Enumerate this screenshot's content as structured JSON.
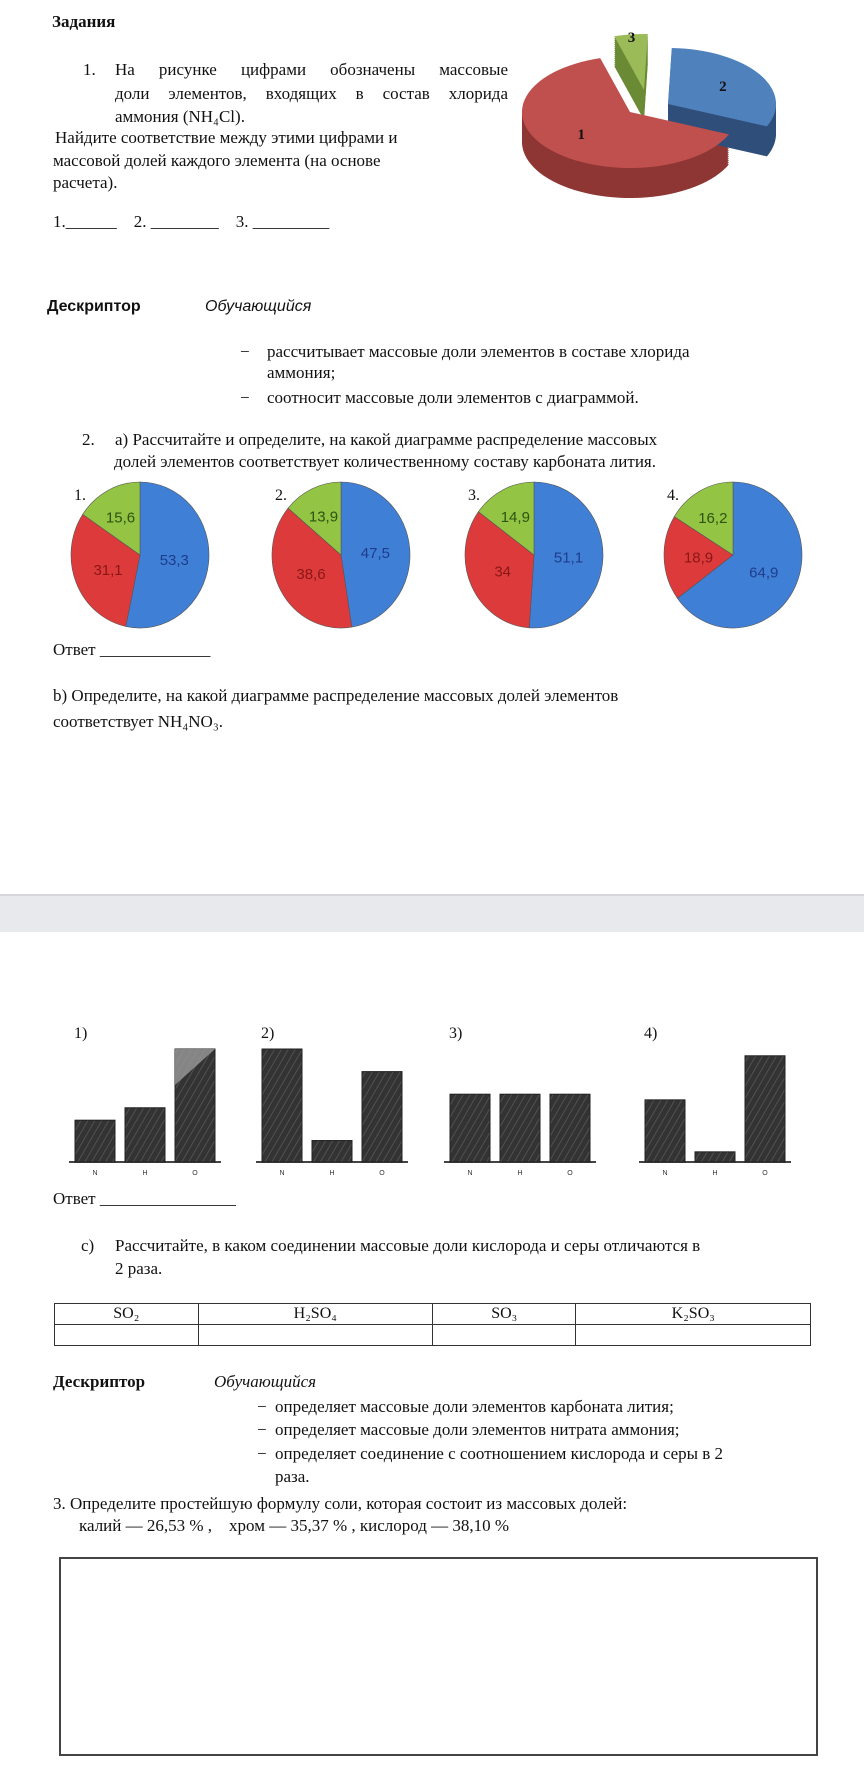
{
  "heading": "Задания",
  "task1": {
    "number": "1.",
    "lines": [
      "На рисунке цифрами обозначены массовые",
      "доли элементов, входящих в состав хлорида",
      "аммония (NH₄Cl)."
    ],
    "find_lines": [
      "Найдите соответствие между этими цифрами и",
      "массовой долей каждого элемента (на основе",
      "расчета)."
    ],
    "blanks": "1.______    2. ________    3. _________"
  },
  "descriptor1": {
    "label": "Дескриптор",
    "learner": "Обучающийся",
    "items": [
      "рассчитывает массовые доли элементов в составе хлорида",
      "аммония;",
      "соотносит массовые доли элементов с диаграммой."
    ],
    "dash": "−"
  },
  "task2": {
    "number": "2.",
    "a_lines": [
      "а) Рассчитайте и определите, на какой диаграмме распределение массовых",
      "долей элементов соответствует количественному составу карбоната лития."
    ],
    "answer_a": "Ответ _____________",
    "b_lines": [
      "b) Определите, на какой диаграмме распределение массовых долей элементов",
      "соответствует NH₄NO₃."
    ],
    "answer_b": "Ответ ________________",
    "c_label": "c)",
    "c_lines": [
      "Рассчитайте, в каком соединении массовые доли кислорода и серы отличаются в",
      "2 раза."
    ],
    "table_headers": [
      "SO₂",
      "H₂SO₄",
      "SO₃",
      "K₂SO₃"
    ],
    "table_row": [
      "",
      "",
      "",
      ""
    ]
  },
  "descriptor2": {
    "label": "Дескриптор",
    "learner": "Обучающийся",
    "items": [
      "определяет массовые доли элементов карбоната лития;",
      "определяет массовые доли элементов нитрата аммония;",
      "определяет соединение с соотношением кислорода и серы в 2",
      "раза."
    ],
    "dash": "−"
  },
  "task3": {
    "line1": "3. Определите простейшую формулу соли, которая состоит из массовых долей:",
    "line2": "калий — 26,53 % ,    хром — 35,37 % , кислород — 38,10 %"
  },
  "colors": {
    "blue": "#3f7fd6",
    "red": "#dd3b3b",
    "green": "#93c444",
    "pie3d_red": "#c0504d",
    "pie3d_blue": "#4f81bd",
    "pie3d_green": "#9bbb59",
    "bar": "#3a3a3a",
    "band": "#e8e9ed"
  },
  "chart_data": [
    {
      "type": "pie",
      "labels": [
        "1",
        "2",
        "3"
      ],
      "values": [
        64,
        31,
        5
      ],
      "style": "3d-exploded"
    },
    {
      "type": "pie",
      "title": "1.",
      "labels": [
        "53,3",
        "31,1",
        "15,6"
      ],
      "values": [
        53.3,
        31.1,
        15.6
      ]
    },
    {
      "type": "pie",
      "title": "2.",
      "labels": [
        "47,5",
        "38,6",
        "13,9"
      ],
      "values": [
        47.5,
        38.6,
        13.9
      ]
    },
    {
      "type": "pie",
      "title": "3.",
      "labels": [
        "51,1",
        "34",
        "14,9"
      ],
      "values": [
        51.1,
        34,
        14.9
      ]
    },
    {
      "type": "pie",
      "title": "4.",
      "labels": [
        "64,9",
        "18,9",
        "16,2"
      ],
      "values": [
        64.9,
        18.9,
        16.2
      ]
    },
    {
      "type": "bar",
      "title": "1)",
      "categories": [
        "N",
        "H",
        "O"
      ],
      "values": [
        37,
        48,
        100
      ]
    },
    {
      "type": "bar",
      "title": "2)",
      "categories": [
        "N",
        "H",
        "O"
      ],
      "values": [
        100,
        19,
        80
      ]
    },
    {
      "type": "bar",
      "title": "3)",
      "categories": [
        "N",
        "H",
        "O"
      ],
      "values": [
        60,
        60,
        60
      ]
    },
    {
      "type": "bar",
      "title": "4)",
      "categories": [
        "N",
        "H",
        "O"
      ],
      "values": [
        55,
        9,
        94
      ]
    }
  ]
}
